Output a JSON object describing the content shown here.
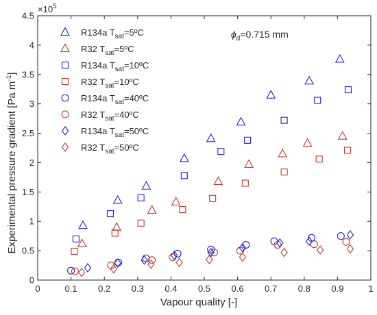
{
  "chart_data": {
    "type": "scatter",
    "xlabel": "Vapour quality [-]",
    "ylabel": "Experimental pressure gradient [Pa  m",
    "ylabel_sup": "-1",
    "ylabel_close": "]",
    "y_multiplier": "×10",
    "y_multiplier_exp": "5",
    "annotation": {
      "symbol": "ϕ",
      "sub": "d",
      "text": "=0.715 mm"
    },
    "xlim": [
      0,
      1
    ],
    "ylim": [
      0,
      4.5
    ],
    "x_ticks": [
      "0",
      "0.1",
      "0.2",
      "0.3",
      "0.4",
      "0.5",
      "0.6",
      "0.7",
      "0.8",
      "0.9",
      "1"
    ],
    "y_ticks": [
      "0",
      "0.5",
      "1",
      "1.5",
      "2",
      "2.5",
      "3",
      "3.5",
      "4",
      "4.5"
    ],
    "grid": false,
    "legend_position": "top-left",
    "colors": {
      "R134a": "#1f1fd6",
      "R32": "#c0392b"
    },
    "series": [
      {
        "refrigerant": "R134a",
        "tsat": "5ºC",
        "marker": "triangle",
        "color": "#1f1fd6",
        "points": [
          [
            0.136,
            0.93
          ],
          [
            0.24,
            1.36
          ],
          [
            0.326,
            1.6
          ],
          [
            0.44,
            2.07
          ],
          [
            0.52,
            2.41
          ],
          [
            0.61,
            2.69
          ],
          [
            0.7,
            3.15
          ],
          [
            0.815,
            3.39
          ],
          [
            0.907,
            3.76
          ]
        ]
      },
      {
        "refrigerant": "R32",
        "tsat": "5ºC",
        "marker": "triangle",
        "color": "#c0392b",
        "points": [
          [
            0.133,
            0.62
          ],
          [
            0.237,
            0.9
          ],
          [
            0.343,
            1.19
          ],
          [
            0.415,
            1.33
          ],
          [
            0.542,
            1.68
          ],
          [
            0.634,
            1.97
          ],
          [
            0.735,
            2.15
          ],
          [
            0.81,
            2.33
          ],
          [
            0.915,
            2.45
          ]
        ]
      },
      {
        "refrigerant": "R134a",
        "tsat": "10ºC",
        "marker": "square",
        "color": "#1f1fd6",
        "points": [
          [
            0.115,
            0.7
          ],
          [
            0.218,
            1.13
          ],
          [
            0.31,
            1.4
          ],
          [
            0.44,
            1.78
          ],
          [
            0.55,
            2.19
          ],
          [
            0.63,
            2.38
          ],
          [
            0.74,
            2.72
          ],
          [
            0.84,
            3.06
          ],
          [
            0.932,
            3.24
          ]
        ]
      },
      {
        "refrigerant": "R32",
        "tsat": "10ºC",
        "marker": "square",
        "color": "#c0392b",
        "points": [
          [
            0.11,
            0.49
          ],
          [
            0.232,
            0.8
          ],
          [
            0.31,
            0.97
          ],
          [
            0.435,
            1.2
          ],
          [
            0.525,
            1.39
          ],
          [
            0.623,
            1.65
          ],
          [
            0.74,
            1.84
          ],
          [
            0.845,
            2.06
          ],
          [
            0.93,
            2.21
          ]
        ]
      },
      {
        "refrigerant": "R134a",
        "tsat": "40ºC",
        "marker": "circle",
        "color": "#1f1fd6",
        "points": [
          [
            0.1,
            0.16
          ],
          [
            0.242,
            0.3
          ],
          [
            0.325,
            0.37
          ],
          [
            0.42,
            0.45
          ],
          [
            0.52,
            0.52
          ],
          [
            0.625,
            0.6
          ],
          [
            0.71,
            0.66
          ],
          [
            0.822,
            0.72
          ],
          [
            0.91,
            0.75
          ]
        ]
      },
      {
        "refrigerant": "R32",
        "tsat": "40ºC",
        "marker": "circle",
        "color": "#c0392b",
        "points": [
          [
            0.112,
            0.15
          ],
          [
            0.22,
            0.25
          ],
          [
            0.343,
            0.34
          ],
          [
            0.405,
            0.39
          ],
          [
            0.53,
            0.47
          ],
          [
            0.608,
            0.5
          ],
          [
            0.72,
            0.6
          ],
          [
            0.83,
            0.61
          ],
          [
            0.926,
            0.65
          ]
        ]
      },
      {
        "refrigerant": "R134a",
        "tsat": "50ºC",
        "marker": "diamond",
        "color": "#1f1fd6",
        "points": [
          [
            0.15,
            0.21
          ],
          [
            0.24,
            0.29
          ],
          [
            0.32,
            0.34
          ],
          [
            0.41,
            0.42
          ],
          [
            0.52,
            0.47
          ],
          [
            0.615,
            0.55
          ],
          [
            0.727,
            0.63
          ],
          [
            0.815,
            0.66
          ],
          [
            0.938,
            0.77
          ]
        ]
      },
      {
        "refrigerant": "R32",
        "tsat": "50ºC",
        "marker": "diamond",
        "color": "#c0392b",
        "points": [
          [
            0.132,
            0.13
          ],
          [
            0.228,
            0.19
          ],
          [
            0.34,
            0.27
          ],
          [
            0.425,
            0.3
          ],
          [
            0.515,
            0.35
          ],
          [
            0.615,
            0.39
          ],
          [
            0.74,
            0.47
          ],
          [
            0.848,
            0.51
          ],
          [
            0.938,
            0.53
          ]
        ]
      }
    ]
  }
}
